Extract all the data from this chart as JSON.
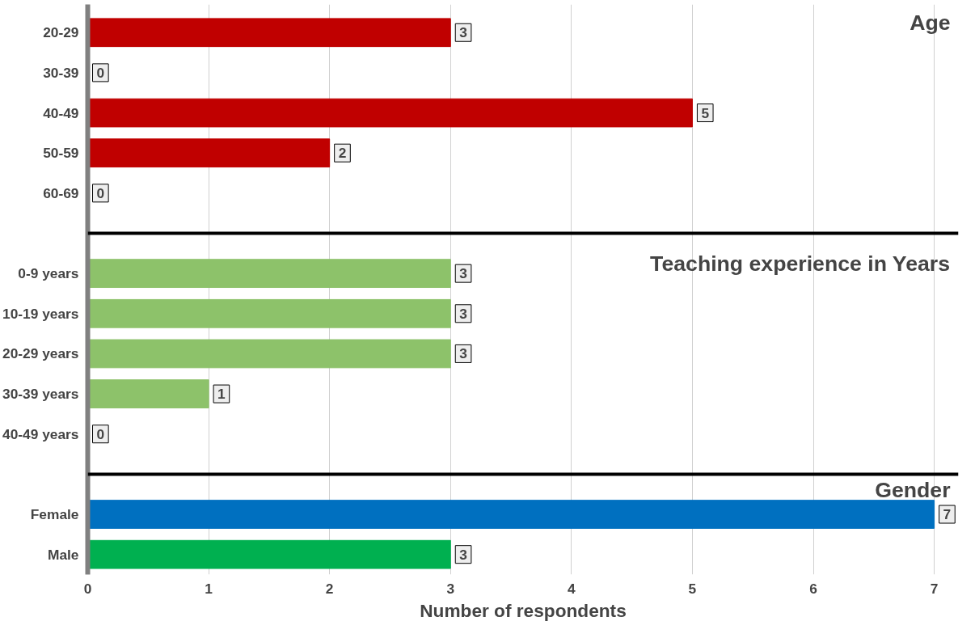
{
  "chart_data": {
    "type": "bar",
    "orientation": "horizontal",
    "xlabel": "Number of respondents",
    "categories": [
      "20-29",
      "30-39",
      "40-49",
      "50-59",
      "60-69",
      null,
      "0-9 years",
      "10-19 years",
      "20-29 years",
      "30-39 years",
      "40-49 years",
      null,
      "Female",
      "Male"
    ],
    "values": [
      3,
      0,
      5,
      2,
      0,
      null,
      3,
      3,
      3,
      1,
      0,
      null,
      7,
      3
    ],
    "colors": [
      "#c00000",
      "#c00000",
      "#c00000",
      "#c00000",
      "#c00000",
      "#ffffff",
      "#8dc26a",
      "#8dc26a",
      "#8dc26a",
      "#8dc26a",
      "#8dc26a",
      "#ffffff",
      "#0070c0",
      "#00b050"
    ],
    "xlim": [
      0,
      7.2
    ],
    "xticks": [
      0,
      1,
      2,
      3,
      4,
      5,
      6,
      7
    ],
    "grid": "x",
    "data_labels": true,
    "annotations": [
      "Age",
      "Teaching experience in Years",
      "Gender"
    ]
  }
}
